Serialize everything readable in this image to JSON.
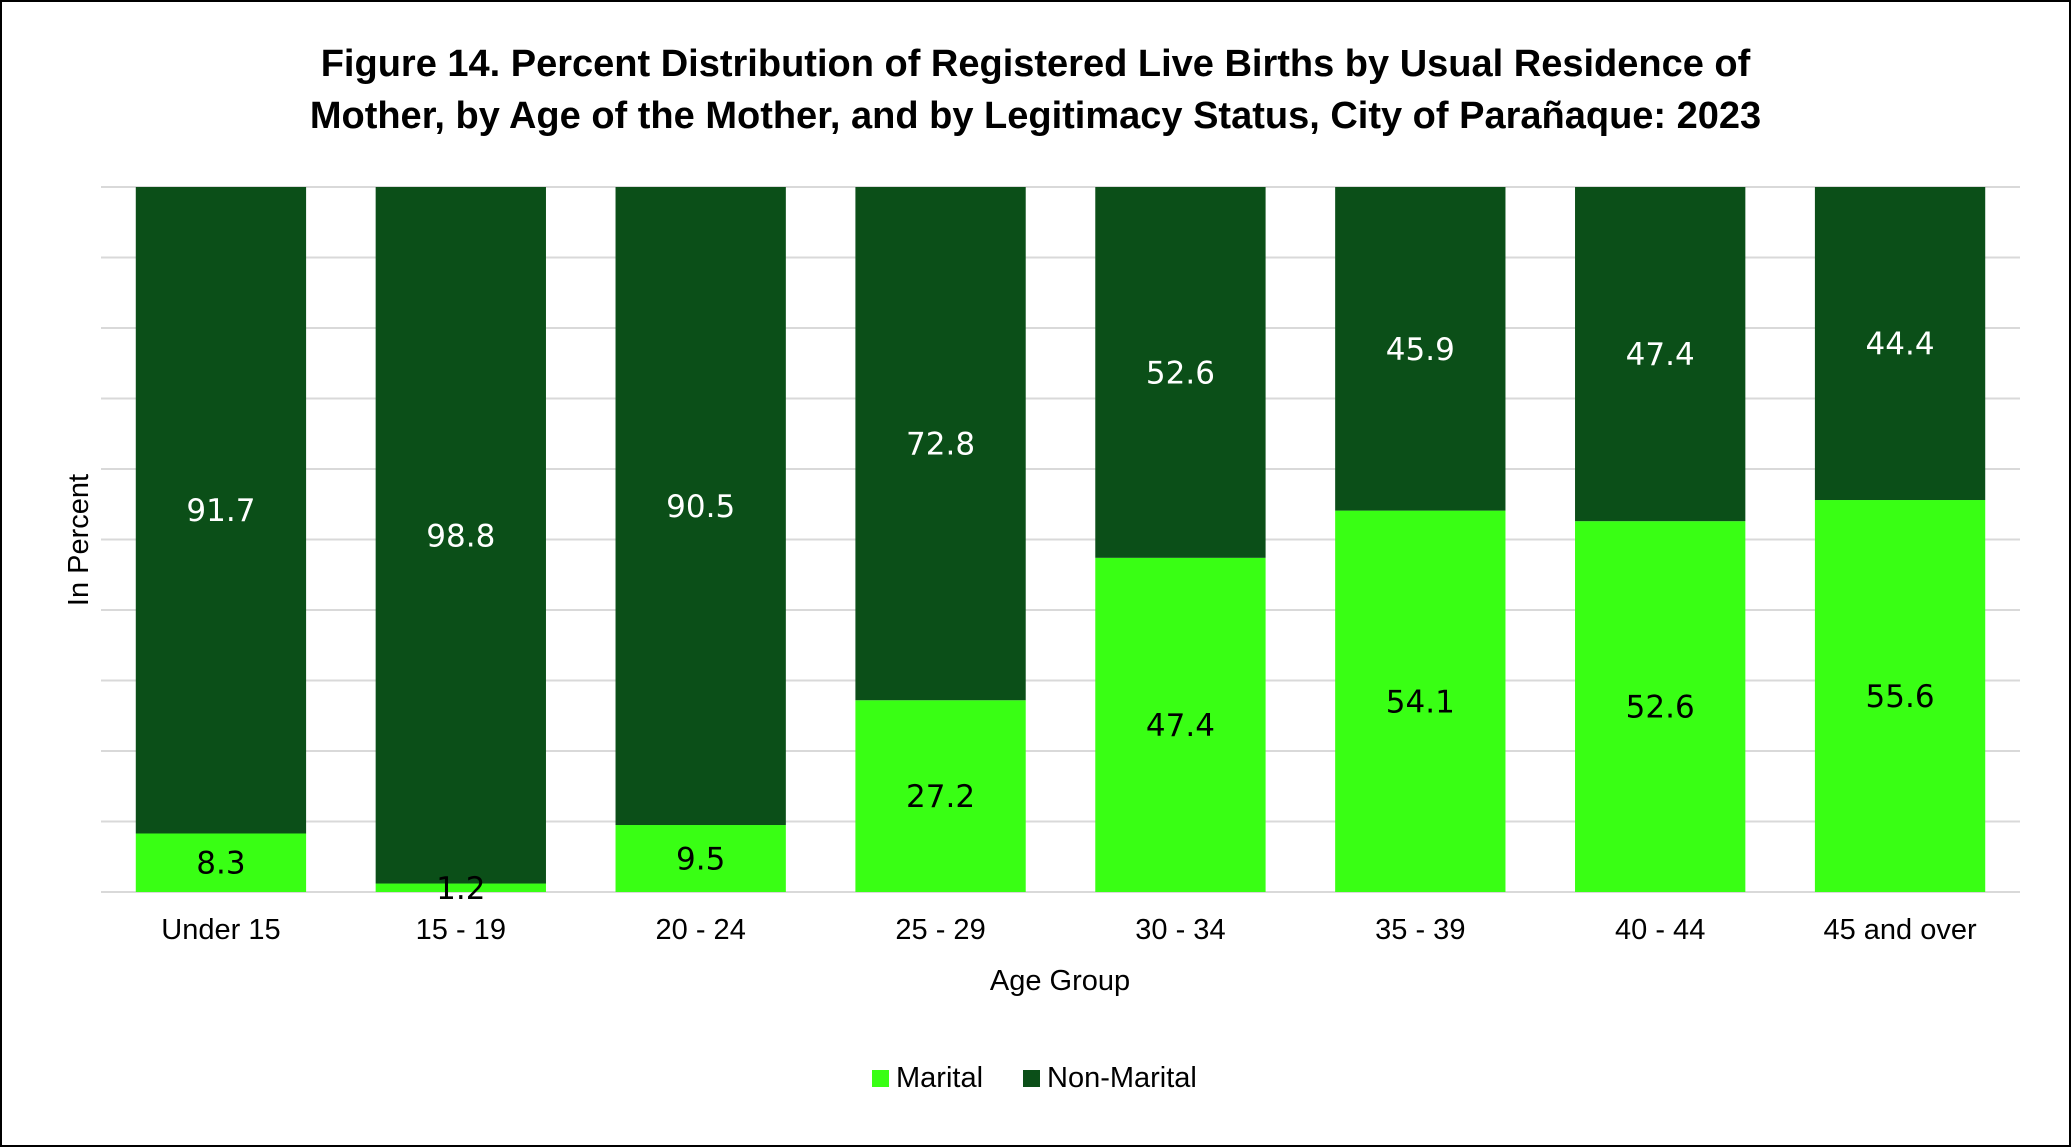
{
  "chart_data": {
    "type": "bar",
    "stacked": true,
    "title_line1": "Figure 14. Percent Distribution of Registered Live Births by Usual Residence of",
    "title_line2": "Mother, by Age of the Mother, and by Legitimacy Status, City of Parañaque: 2023",
    "xlabel": "Age Group",
    "ylabel": "In Percent",
    "ylim": [
      0,
      100
    ],
    "grid": true,
    "legend_position": "bottom",
    "categories": [
      "Under 15",
      "15 - 19",
      "20 - 24",
      "25 - 29",
      "30 - 34",
      "35 - 39",
      "40 - 44",
      "45 and over"
    ],
    "series": [
      {
        "name": "Marital",
        "color": "#39ff14",
        "label_color": "#000000",
        "values": [
          8.3,
          1.2,
          9.5,
          27.2,
          47.4,
          54.1,
          52.6,
          55.6
        ]
      },
      {
        "name": "Non-Marital",
        "color": "#0b4f18",
        "label_color": "#ffffff",
        "values": [
          91.7,
          98.8,
          90.5,
          72.8,
          52.6,
          45.9,
          47.4,
          44.4
        ]
      }
    ],
    "gridline_color": "#d9d9d9"
  }
}
